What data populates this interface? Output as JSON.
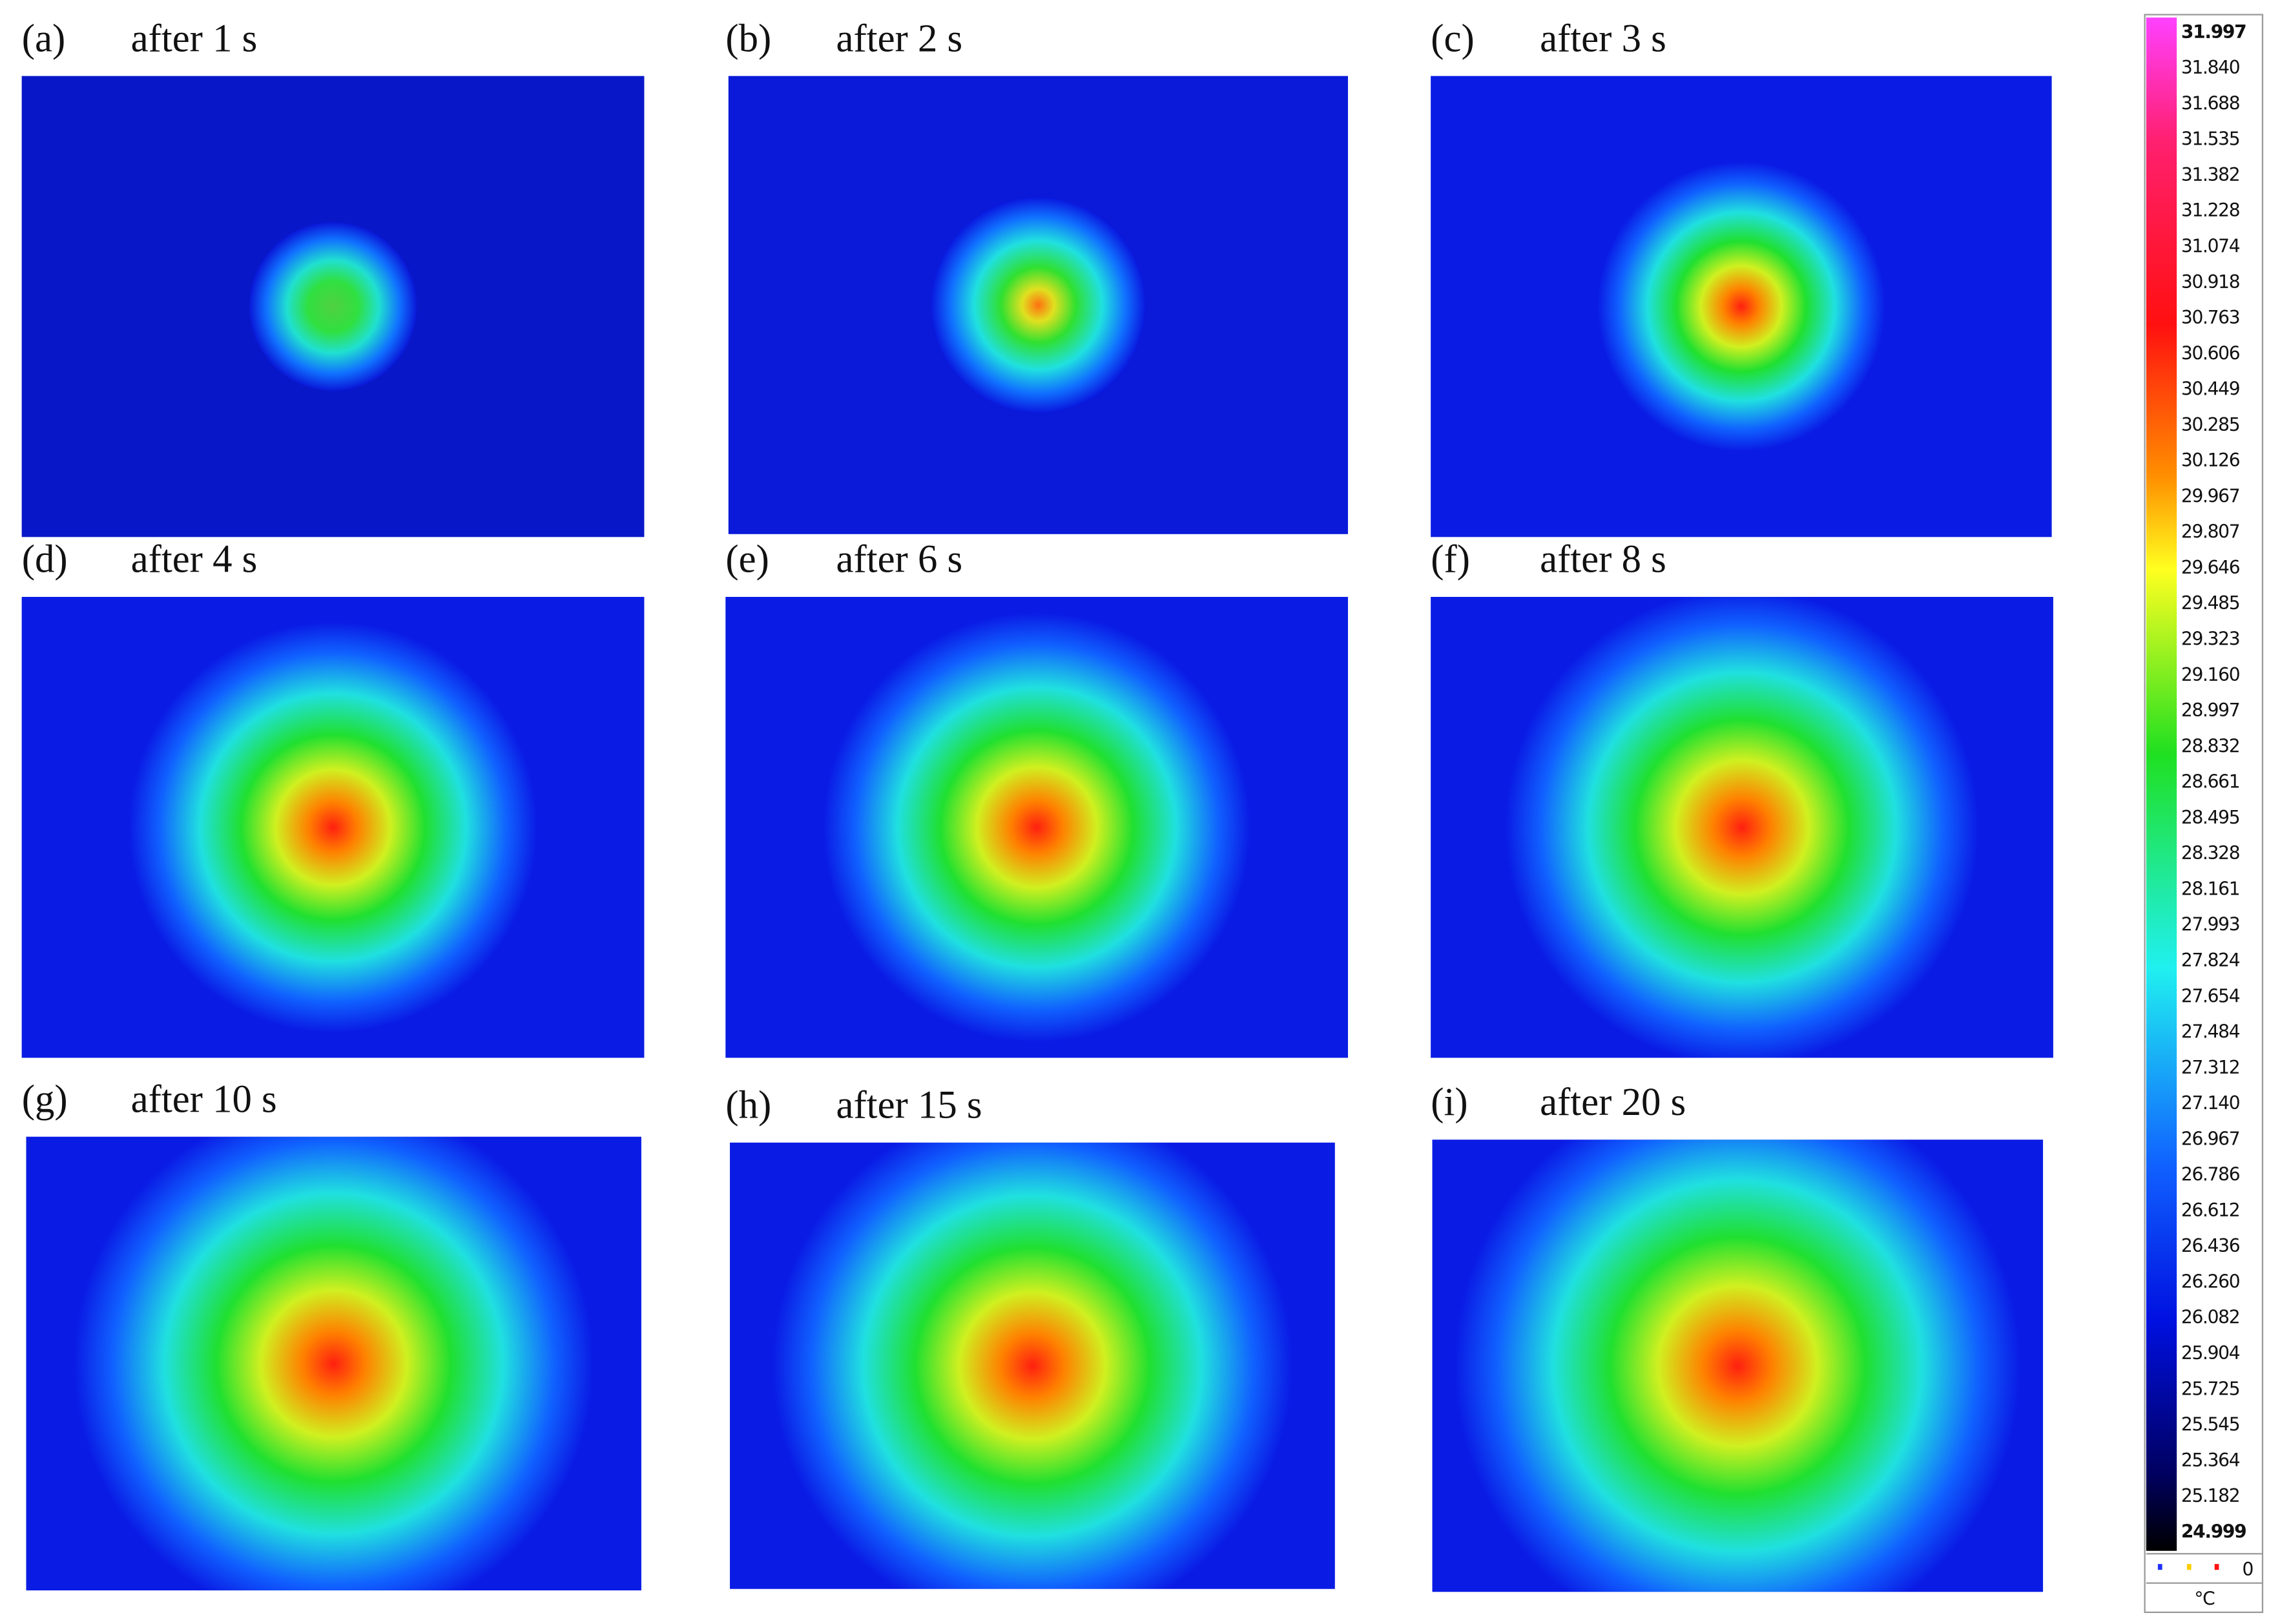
{
  "panels": [
    {
      "label": "(a)",
      "caption": "after 1 s"
    },
    {
      "label": "(b)",
      "caption": "after 2 s"
    },
    {
      "label": "(c)",
      "caption": "after 3 s"
    },
    {
      "label": "(d)",
      "caption": "after 4 s"
    },
    {
      "label": "(e)",
      "caption": "after 6 s"
    },
    {
      "label": "(f)",
      "caption": "after 8 s"
    },
    {
      "label": "(g)",
      "caption": "after 10 s"
    },
    {
      "label": "(h)",
      "caption": "after 15 s"
    },
    {
      "label": "(i)",
      "caption": "after 20 s"
    }
  ],
  "colorbar": {
    "ticks": [
      "31.997",
      "31.840",
      "31.688",
      "31.535",
      "31.382",
      "31.228",
      "31.074",
      "30.918",
      "30.763",
      "30.606",
      "30.449",
      "30.285",
      "30.126",
      "29.967",
      "29.807",
      "29.646",
      "29.485",
      "29.323",
      "29.160",
      "28.997",
      "28.832",
      "28.661",
      "28.495",
      "28.328",
      "28.161",
      "27.993",
      "27.824",
      "27.654",
      "27.484",
      "27.312",
      "27.140",
      "26.967",
      "26.786",
      "26.612",
      "26.436",
      "26.260",
      "26.082",
      "25.904",
      "25.725",
      "25.545",
      "25.364",
      "25.182",
      "24.999"
    ],
    "marker_value": "0",
    "unit": "°C"
  }
}
